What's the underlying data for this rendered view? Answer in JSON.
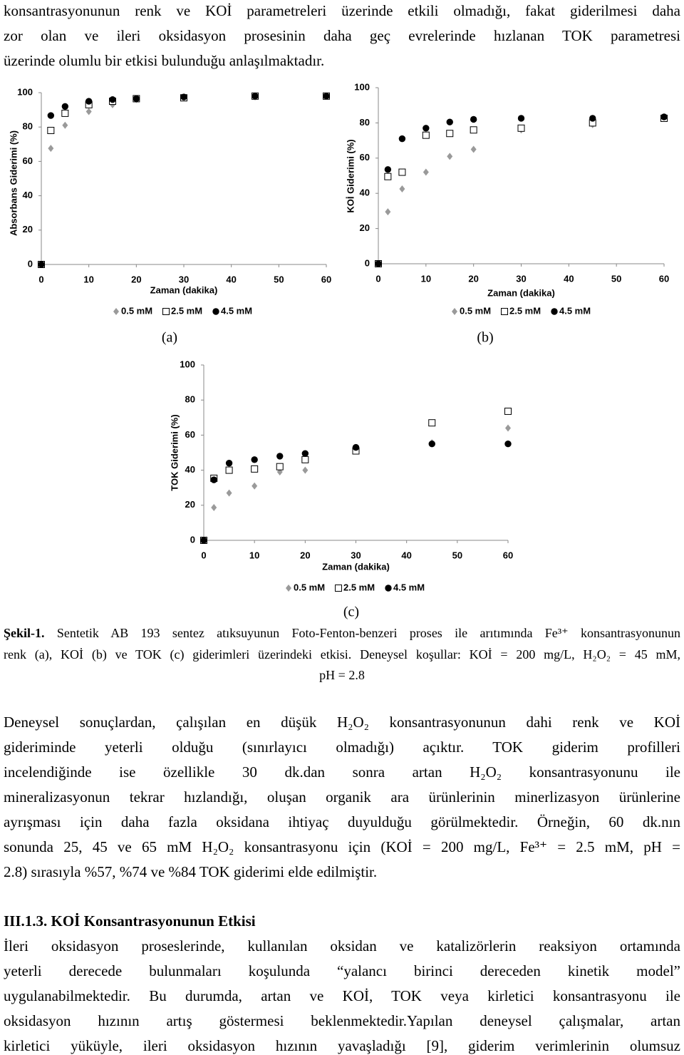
{
  "top_paragraph": {
    "lines": [
      "konsantrasyonunun renk ve KOİ parametreleri üzerinde etkili olmadığı, fakat giderilmesi daha",
      "zor olan ve ileri oksidasyon prosesinin daha geç evrelerinde hızlanan TOK parametresi",
      "üzerinde olumlu bir etkisi  bulunduğu anlaşılmaktadır."
    ]
  },
  "chart_data": [
    {
      "type": "scatter",
      "label": "(a)",
      "x_label": "Zaman (dakika)",
      "y_label": "Absorbans Giderimi (%)",
      "x": [
        0,
        2,
        5,
        10,
        15,
        20,
        30,
        45,
        60
      ],
      "xlim": [
        0,
        60
      ],
      "xticks": [
        0,
        10,
        20,
        30,
        40,
        50,
        60
      ],
      "ylim": [
        0,
        100
      ],
      "yticks": [
        0,
        20,
        40,
        60,
        80,
        100
      ],
      "grid": false,
      "series": [
        {
          "name": "0.5 mM",
          "color": "#9a9a9a",
          "marker": "diamond",
          "values": [
            0,
            67.6,
            81,
            89,
            93,
            96,
            97,
            97.5,
            98
          ]
        },
        {
          "name": "2.5 mM",
          "color": "#000000",
          "marker": "square",
          "values": [
            0,
            78,
            88,
            93,
            95,
            96.5,
            97,
            98,
            98
          ]
        },
        {
          "name": "4.5 mM",
          "color": "#000000",
          "marker": "circle",
          "values": [
            0,
            86.7,
            92,
            95,
            96,
            96.5,
            97.5,
            98,
            98
          ]
        }
      ]
    },
    {
      "type": "scatter",
      "label": "(b)",
      "x_label": "Zaman (dakika)",
      "y_label": "KOİ Giderimi (%)",
      "x": [
        0,
        2,
        5,
        10,
        15,
        20,
        30,
        45,
        60
      ],
      "xlim": [
        0,
        60
      ],
      "xticks": [
        0,
        10,
        20,
        30,
        40,
        50,
        60
      ],
      "ylim": [
        0,
        100
      ],
      "yticks": [
        0,
        20,
        40,
        60,
        80,
        100
      ],
      "grid": false,
      "series": [
        {
          "name": "0.5 mM",
          "color": "#9a9a9a",
          "marker": "diamond",
          "values": [
            0,
            29.5,
            42.5,
            52,
            61,
            65,
            76,
            79,
            83
          ]
        },
        {
          "name": "2.5 mM",
          "color": "#000000",
          "marker": "square",
          "values": [
            0,
            49.5,
            52,
            73,
            74,
            76,
            77,
            80,
            82.6
          ]
        },
        {
          "name": "4.5 mM",
          "color": "#000000",
          "marker": "circle",
          "values": [
            0,
            53.5,
            71,
            77,
            80.5,
            82,
            82.6,
            82.6,
            83.4
          ]
        }
      ]
    },
    {
      "type": "scatter",
      "label": "(c)",
      "x_label": "Zaman (dakika)",
      "y_label": "TOK Giderimi (%)",
      "x": [
        0,
        2,
        5,
        10,
        15,
        20,
        30,
        45,
        60
      ],
      "xlim": [
        0,
        60
      ],
      "xticks": [
        0,
        10,
        20,
        30,
        40,
        50,
        60
      ],
      "ylim": [
        0,
        100
      ],
      "yticks": [
        0,
        20,
        40,
        60,
        80,
        100
      ],
      "grid": false,
      "series": [
        {
          "name": "0.5 mM",
          "color": "#9a9a9a",
          "marker": "diamond",
          "values": [
            0,
            18.7,
            27,
            31,
            39,
            40,
            51,
            55.7,
            64
          ]
        },
        {
          "name": "2.5 mM",
          "color": "#000000",
          "marker": "square",
          "values": [
            0,
            35.4,
            40,
            40.7,
            42,
            46,
            51,
            67,
            73.6
          ]
        },
        {
          "name": "4.5 mM",
          "color": "#000000",
          "marker": "circle",
          "values": [
            0,
            34.5,
            44,
            46,
            48,
            49.5,
            53,
            55,
            55
          ]
        }
      ]
    }
  ],
  "caption": {
    "label": "Şekil-1.",
    "lines": [
      "Sentetik AB 193 sentez atıksuyunun Foto-Fenton-benzeri proses ile arıtımında Fe³⁺ konsantrasyonunun",
      "renk (a), KOİ (b) ve TOK (c) giderimleri üzerindeki etkisi. Deneysel koşullar: KOİ = 200 mg/L, H₂O₂ = 45 mM,",
      "pH = 2.8"
    ]
  },
  "results_paragraph": {
    "lines": [
      "Deneysel sonuçlardan, çalışılan en düşük H₂O₂ konsantrasyonunun dahi renk ve KOİ",
      "gideriminde yeterli olduğu (sınırlayıcı olmadığı) açıktır. TOK giderim profilleri",
      "incelendiğinde ise özellikle 30 dk.dan sonra artan H₂O₂ konsantrasyonunu ile",
      "mineralizasyonun tekrar hızlandığı, oluşan organik ara ürünlerinin minerlizasyon ürünlerine",
      "ayrışması için daha fazla oksidana ihtiyaç duyulduğu görülmektedir.  Örneğin, 60 dk.nın",
      "sonunda 25, 45 ve 65 mM H₂O₂ konsantrasyonu için (KOİ = 200 mg/L, Fe³⁺ = 2.5 mM, pH =",
      "2.8) sırasıyla %57, %74 ve %84 TOK giderimi elde edilmiştir."
    ]
  },
  "section": {
    "heading": "III.1.3. KOİ Konsantrasyonunun Etkisi",
    "lines": [
      "İleri oksidasyon proseslerinde, kullanılan oksidan ve katalizörlerin reaksiyon ortamında",
      "yeterli derecede bulunmaları koşulunda “yalancı birinci dereceden kinetik model”",
      "uygulanabilmektedir. Bu durumda, artan ve KOİ, TOK veya kirletici konsantrasyonu ile",
      "oksidasyon hızının artış göstermesi beklenmektedir.Yapılan deneysel çalışmalar, artan",
      "kirletici yüküyle, ileri oksidasyon hızının yavaşladığı [9], giderim verimlerinin olumsuz"
    ]
  }
}
